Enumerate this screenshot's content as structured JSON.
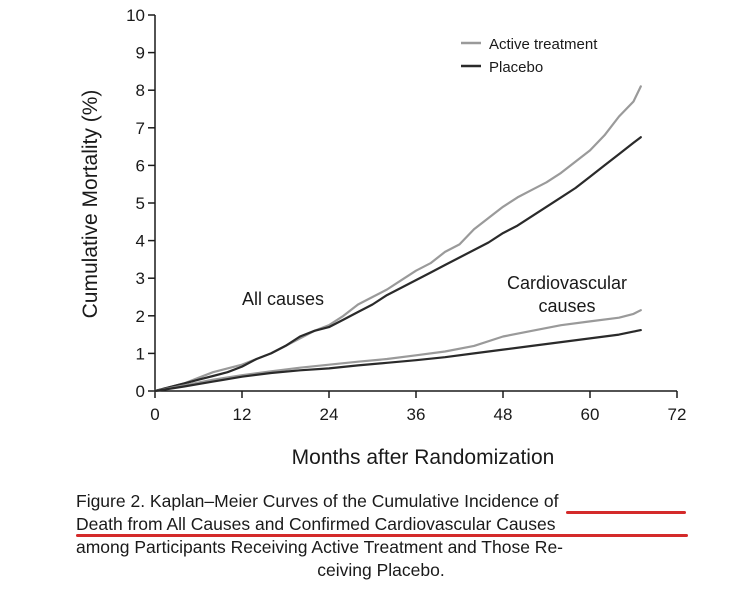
{
  "chart_data": {
    "type": "line",
    "title": "",
    "xlabel": "Months after Randomization",
    "ylabel": "Cumulative Mortality (%)",
    "xlim": [
      0,
      72
    ],
    "ylim": [
      0,
      10
    ],
    "xticks": [
      0,
      12,
      24,
      36,
      48,
      60,
      72
    ],
    "yticks": [
      0,
      1,
      2,
      3,
      4,
      5,
      6,
      7,
      8,
      9,
      10
    ],
    "grid": false,
    "legend": {
      "position": "top-right",
      "entries": [
        "Active treatment",
        "Placebo"
      ]
    },
    "annotations": [
      "All causes",
      "Cardiovascular causes"
    ],
    "series": [
      {
        "name": "Active treatment",
        "group": "All causes",
        "color": "#9a9a9a",
        "x": [
          0,
          2,
          4,
          6,
          8,
          10,
          12,
          14,
          16,
          18,
          20,
          22,
          24,
          26,
          28,
          30,
          32,
          34,
          36,
          38,
          40,
          42,
          44,
          46,
          48,
          50,
          52,
          54,
          56,
          58,
          60,
          62,
          64,
          66,
          67
        ],
        "y": [
          0,
          0.1,
          0.2,
          0.35,
          0.5,
          0.6,
          0.7,
          0.85,
          1.0,
          1.2,
          1.4,
          1.6,
          1.75,
          2.0,
          2.3,
          2.5,
          2.7,
          2.95,
          3.2,
          3.4,
          3.7,
          3.9,
          4.3,
          4.6,
          4.9,
          5.15,
          5.35,
          5.55,
          5.8,
          6.1,
          6.4,
          6.8,
          7.3,
          7.7,
          8.1
        ]
      },
      {
        "name": "Placebo",
        "group": "All causes",
        "color": "#2a2a2a",
        "x": [
          0,
          2,
          4,
          6,
          8,
          10,
          12,
          14,
          16,
          18,
          20,
          22,
          24,
          26,
          28,
          30,
          32,
          34,
          36,
          38,
          40,
          42,
          44,
          46,
          48,
          50,
          52,
          54,
          56,
          58,
          60,
          62,
          64,
          66,
          67
        ],
        "y": [
          0,
          0.1,
          0.2,
          0.3,
          0.4,
          0.5,
          0.65,
          0.85,
          1.0,
          1.2,
          1.45,
          1.6,
          1.7,
          1.9,
          2.1,
          2.3,
          2.55,
          2.75,
          2.95,
          3.15,
          3.35,
          3.55,
          3.75,
          3.95,
          4.2,
          4.4,
          4.65,
          4.9,
          5.15,
          5.4,
          5.7,
          6.0,
          6.3,
          6.6,
          6.75
        ]
      },
      {
        "name": "Active treatment",
        "group": "Cardiovascular causes",
        "color": "#9a9a9a",
        "x": [
          0,
          4,
          8,
          12,
          16,
          20,
          24,
          28,
          32,
          36,
          40,
          44,
          48,
          52,
          56,
          60,
          64,
          66,
          67
        ],
        "y": [
          0,
          0.15,
          0.3,
          0.42,
          0.52,
          0.62,
          0.7,
          0.78,
          0.85,
          0.95,
          1.05,
          1.2,
          1.45,
          1.6,
          1.75,
          1.85,
          1.95,
          2.05,
          2.15
        ]
      },
      {
        "name": "Placebo",
        "group": "Cardiovascular causes",
        "color": "#2a2a2a",
        "x": [
          0,
          4,
          8,
          12,
          16,
          20,
          24,
          28,
          32,
          36,
          40,
          44,
          48,
          52,
          56,
          60,
          64,
          66,
          67
        ],
        "y": [
          0,
          0.12,
          0.25,
          0.38,
          0.48,
          0.55,
          0.6,
          0.68,
          0.75,
          0.82,
          0.9,
          1.0,
          1.1,
          1.2,
          1.3,
          1.4,
          1.5,
          1.58,
          1.62
        ]
      }
    ]
  },
  "labels": {
    "legend_active": "Active treatment",
    "legend_placebo": "Placebo",
    "annot_all_causes": "All causes",
    "annot_cv_line1": "Cardiovascular",
    "annot_cv_line2": "causes"
  },
  "caption": {
    "line1": "Figure 2. Kaplan–Meier Curves of the Cumulative Incidence of",
    "line2": "Death from All Causes and Confirmed Cardiovascular Causes",
    "line3": "among Participants Receiving Active Treatment and Those Re-",
    "line4": "ceiving Placebo."
  }
}
